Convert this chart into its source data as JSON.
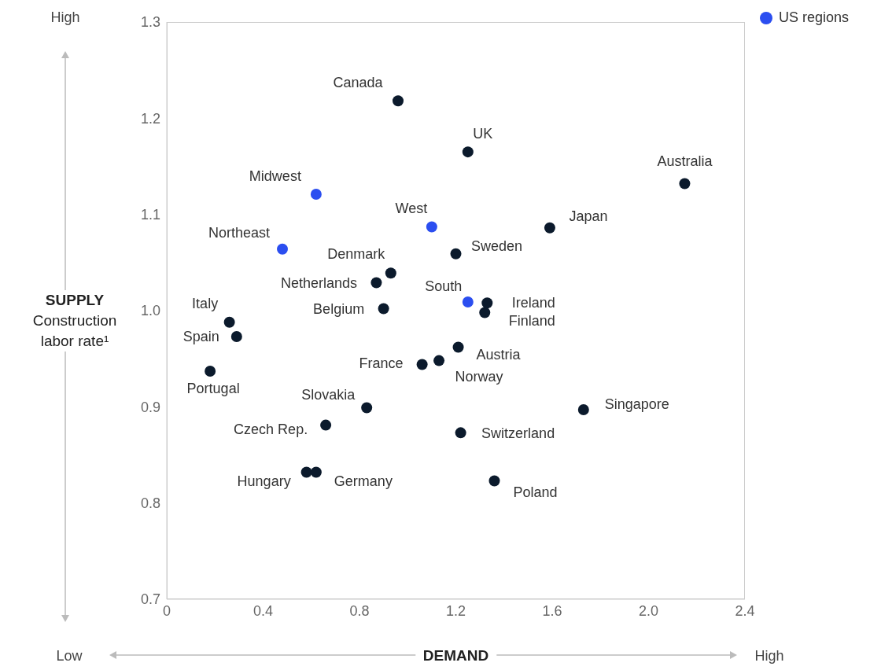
{
  "chart_data": {
    "type": "scatter",
    "xlabel": "DEMAND",
    "ylabel": "SUPPLY\nConstruction\nlabor rate¹",
    "xlim": [
      0,
      2.4
    ],
    "xticks": [
      0,
      0.4,
      0.8,
      1.2,
      1.6,
      {
        "value": 2,
        "label": "2.0"
      },
      2.4
    ],
    "ylim": [
      0.7,
      1.3
    ],
    "yticks": [
      0.7,
      0.8,
      0.9,
      {
        "value": 1,
        "label": "1.0"
      },
      1.1,
      1.2,
      1.3
    ],
    "grid": false,
    "legend": "top right",
    "marker": "circle",
    "series": [
      {
        "color": "#0b1a2c",
        "x": [
          0.96,
          1.25,
          2.15,
          1.59,
          1.2,
          0.93,
          0.87,
          0.9,
          1.33,
          1.32,
          0.26,
          0.29,
          0.18,
          1.21,
          1.06,
          1.13,
          0.83,
          0.66,
          1.22,
          1.73,
          0.58,
          0.62,
          1.36
        ],
        "values": [
          1.218,
          1.165,
          1.132,
          1.086,
          1.059,
          1.039,
          1.029,
          1.002,
          1.008,
          0.998,
          0.988,
          0.973,
          0.937,
          0.962,
          0.944,
          0.948,
          0.899,
          0.881,
          0.873,
          0.897,
          0.832,
          0.832,
          0.823
        ]
      },
      {
        "name": "US regions",
        "color": "#2b4ef0",
        "x": [
          0.62,
          0.48,
          1.1,
          1.25
        ],
        "values": [
          1.121,
          1.064,
          1.087,
          1.009
        ]
      }
    ],
    "annotations": [
      {
        "text": "Canada",
        "x": 0.96,
        "y": 1.218
      },
      {
        "text": "UK",
        "x": 1.25,
        "y": 1.165
      },
      {
        "text": "Australia",
        "x": 2.15,
        "y": 1.132
      },
      {
        "text": "Japan",
        "x": 1.59,
        "y": 1.086
      },
      {
        "text": "Sweden",
        "x": 1.2,
        "y": 1.059
      },
      {
        "text": "Denmark",
        "x": 0.93,
        "y": 1.039
      },
      {
        "text": "Netherlands",
        "x": 0.87,
        "y": 1.029
      },
      {
        "text": "Belgium",
        "x": 0.9,
        "y": 1.002
      },
      {
        "text": "Ireland",
        "x": 1.33,
        "y": 1.008
      },
      {
        "text": "Finland",
        "x": 1.32,
        "y": 0.998
      },
      {
        "text": "Italy",
        "x": 0.26,
        "y": 0.988
      },
      {
        "text": "Spain",
        "x": 0.29,
        "y": 0.973
      },
      {
        "text": "Portugal",
        "x": 0.18,
        "y": 0.937
      },
      {
        "text": "Austria",
        "x": 1.21,
        "y": 0.962
      },
      {
        "text": "France",
        "x": 1.06,
        "y": 0.944
      },
      {
        "text": "Norway",
        "x": 1.13,
        "y": 0.948
      },
      {
        "text": "Slovakia",
        "x": 0.83,
        "y": 0.899
      },
      {
        "text": "Czech Rep.",
        "x": 0.66,
        "y": 0.881
      },
      {
        "text": "Switzerland",
        "x": 1.22,
        "y": 0.873
      },
      {
        "text": "Singapore",
        "x": 1.73,
        "y": 0.897
      },
      {
        "text": "Hungary",
        "x": 0.58,
        "y": 0.832
      },
      {
        "text": "Germany",
        "x": 0.62,
        "y": 0.832
      },
      {
        "text": "Poland",
        "x": 1.36,
        "y": 0.823
      },
      {
        "text": "Midwest",
        "x": 0.62,
        "y": 1.121
      },
      {
        "text": "Northeast",
        "x": 0.48,
        "y": 1.064
      },
      {
        "text": "West",
        "x": 1.1,
        "y": 1.087
      },
      {
        "text": "South",
        "x": 1.25,
        "y": 1.009
      },
      "High",
      "Low",
      "High"
    ]
  }
}
